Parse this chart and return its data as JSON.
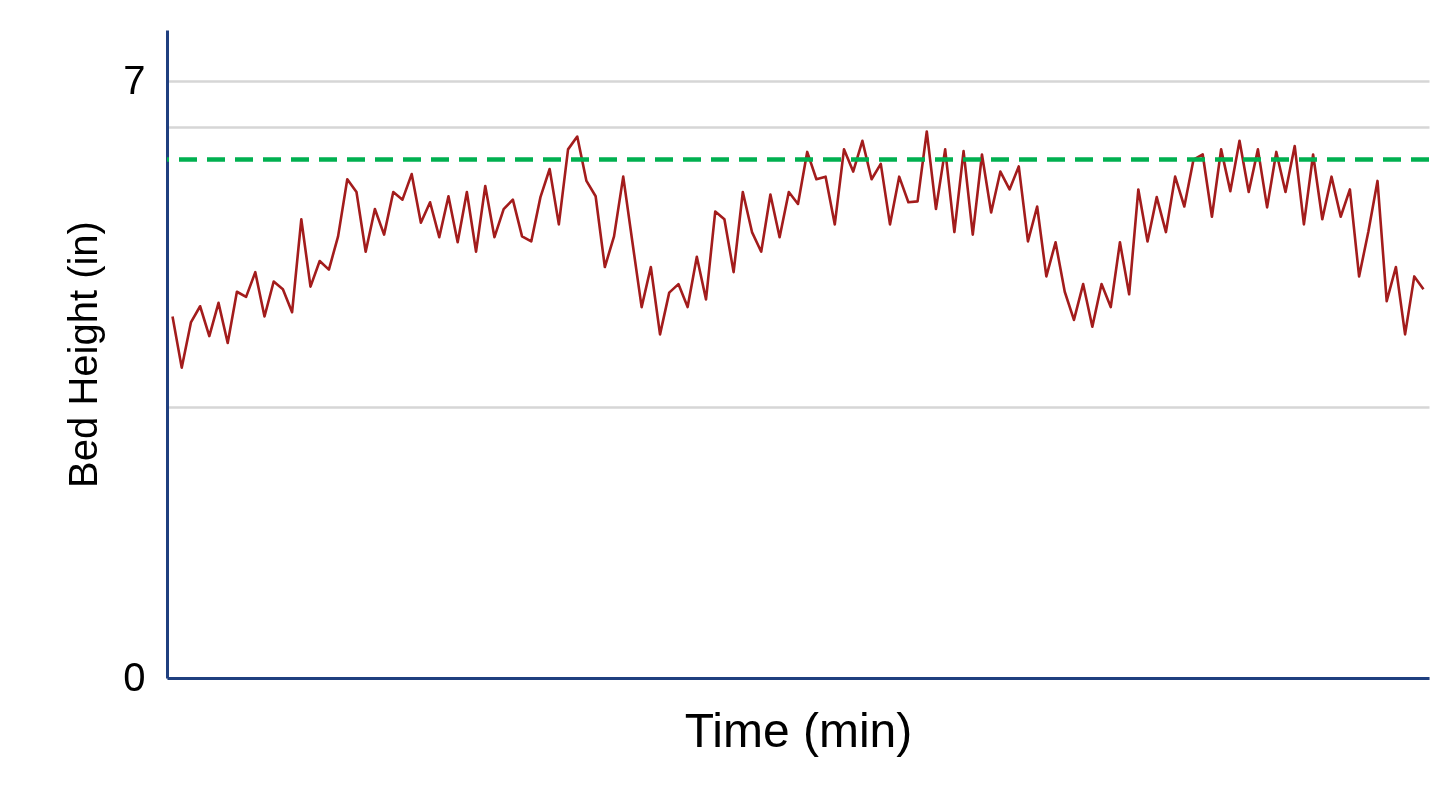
{
  "chart_data": {
    "type": "line",
    "xlabel": "Time (min)",
    "ylabel": "Bed Height (in)",
    "categories": [
      null,
      null,
      null,
      null,
      null,
      null,
      null,
      null,
      null,
      null,
      null,
      null,
      null,
      null,
      null,
      null,
      null,
      null,
      null,
      null,
      null,
      null,
      null,
      null,
      null,
      null,
      null,
      null,
      null,
      null,
      null,
      null,
      null,
      null,
      null,
      null,
      null,
      null,
      null,
      null,
      null,
      null,
      null,
      null,
      null,
      null,
      null,
      null,
      null,
      null,
      null,
      null,
      null,
      null,
      null,
      null,
      null,
      null,
      null,
      null,
      null,
      null,
      null,
      null,
      null,
      null,
      null,
      null,
      null,
      null,
      null,
      null,
      null,
      null,
      null,
      null,
      null,
      null,
      null,
      null,
      null,
      null,
      null,
      null,
      null,
      null,
      null,
      null,
      null,
      null,
      null,
      null,
      null,
      null,
      null,
      null,
      null,
      null,
      null,
      null,
      null,
      null,
      null,
      null,
      null,
      null,
      null,
      null,
      null,
      null,
      null,
      null,
      null,
      null,
      null,
      null,
      null,
      null,
      null,
      null,
      null,
      null,
      null,
      null,
      null,
      null,
      null,
      null,
      null,
      null,
      null,
      null,
      null,
      null,
      null,
      null,
      null
    ],
    "ylim": [
      0,
      7.6
    ],
    "yticks": [
      0,
      {
        "value": 3.18,
        "label": null
      },
      {
        "value": 6.46,
        "label": null
      },
      7
    ],
    "grid": "y",
    "tick_labels": "y",
    "ref_lines": [
      {
        "axis": "y",
        "value": 6.08,
        "color": "#00b050",
        "line_style": "dashed"
      }
    ],
    "series": [
      {
        "color": "#a31c1c",
        "values": [
          4.24,
          3.64,
          4.17,
          4.36,
          4.01,
          4.4,
          3.93,
          4.53,
          4.47,
          4.76,
          4.24,
          4.65,
          4.56,
          4.29,
          5.38,
          4.59,
          4.89,
          4.79,
          5.18,
          5.85,
          5.7,
          5.0,
          5.5,
          5.2,
          5.7,
          5.61,
          5.91,
          5.34,
          5.58,
          5.17,
          5.65,
          5.11,
          5.7,
          5.0,
          5.77,
          5.17,
          5.5,
          5.61,
          5.18,
          5.12,
          5.64,
          5.97,
          5.32,
          6.2,
          6.35,
          5.83,
          5.65,
          4.82,
          5.18,
          5.88,
          5.11,
          4.35,
          4.82,
          4.03,
          4.52,
          4.62,
          4.35,
          4.94,
          4.44,
          5.47,
          5.38,
          4.76,
          5.7,
          5.23,
          5.0,
          5.67,
          5.17,
          5.7,
          5.56,
          6.17,
          5.85,
          5.88,
          5.32,
          6.2,
          5.94,
          6.3,
          5.85,
          6.03,
          5.32,
          5.88,
          5.58,
          5.59,
          6.41,
          5.5,
          6.2,
          5.23,
          6.18,
          5.2,
          6.14,
          5.46,
          5.94,
          5.73,
          6.0,
          5.12,
          5.53,
          4.71,
          5.11,
          4.53,
          4.2,
          4.62,
          4.12,
          4.62,
          4.35,
          5.11,
          4.5,
          5.73,
          5.12,
          5.64,
          5.23,
          5.88,
          5.53,
          6.08,
          6.14,
          5.41,
          6.2,
          5.71,
          6.3,
          5.7,
          6.2,
          5.52,
          6.17,
          5.7,
          6.24,
          5.32,
          6.14,
          5.38,
          5.88,
          5.41,
          5.73,
          4.71,
          5.23,
          5.83,
          4.42,
          4.82,
          4.03,
          4.71,
          4.56
        ]
      }
    ]
  }
}
